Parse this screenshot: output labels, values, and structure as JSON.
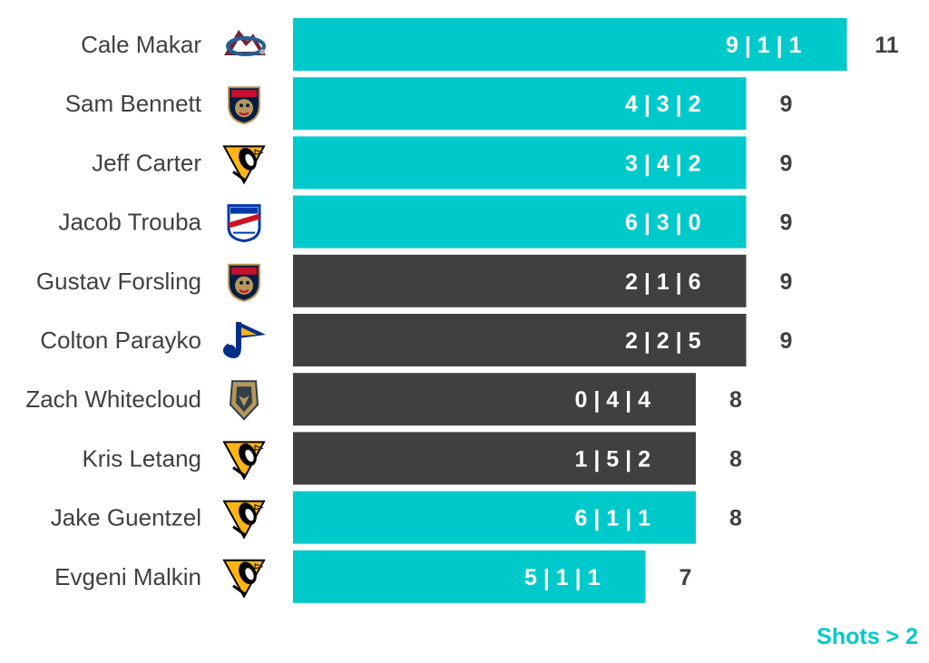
{
  "chart_data": {
    "type": "bar",
    "orientation": "horizontal",
    "categories": [
      "Cale Makar",
      "Sam Bennett",
      "Jeff Carter",
      "Jacob Trouba",
      "Gustav Forsling",
      "Colton Parayko",
      "Zach Whitecloud",
      "Kris Letang",
      "Jake Guentzel",
      "Evgeni Malkin"
    ],
    "values": [
      11,
      9,
      9,
      9,
      9,
      9,
      8,
      8,
      8,
      7
    ],
    "bar_labels": [
      "9 | 1 | 1",
      "4 | 3 | 2",
      "3 | 4 | 2",
      "6 | 3 | 0",
      "2 | 1 | 6",
      "2 | 2 | 5",
      "0 | 4 | 4",
      "1 | 5 | 2",
      "6 | 1 | 1",
      "5 | 1 | 1"
    ],
    "highlight": [
      true,
      true,
      true,
      true,
      false,
      false,
      false,
      false,
      true,
      true
    ],
    "teams": [
      "avalanche-logo",
      "panthers-logo",
      "penguins-logo",
      "rangers-logo",
      "panthers-logo",
      "blues-logo",
      "golden-knights-logo",
      "penguins-logo",
      "penguins-logo",
      "penguins-logo"
    ],
    "xlim": [
      0,
      11
    ],
    "grid": false,
    "legend_note": "Shots > 2"
  },
  "colors": {
    "highlight": "#00c9cc",
    "other": "#404040",
    "bar_text": "#ffffff",
    "label_text": "#404040"
  }
}
